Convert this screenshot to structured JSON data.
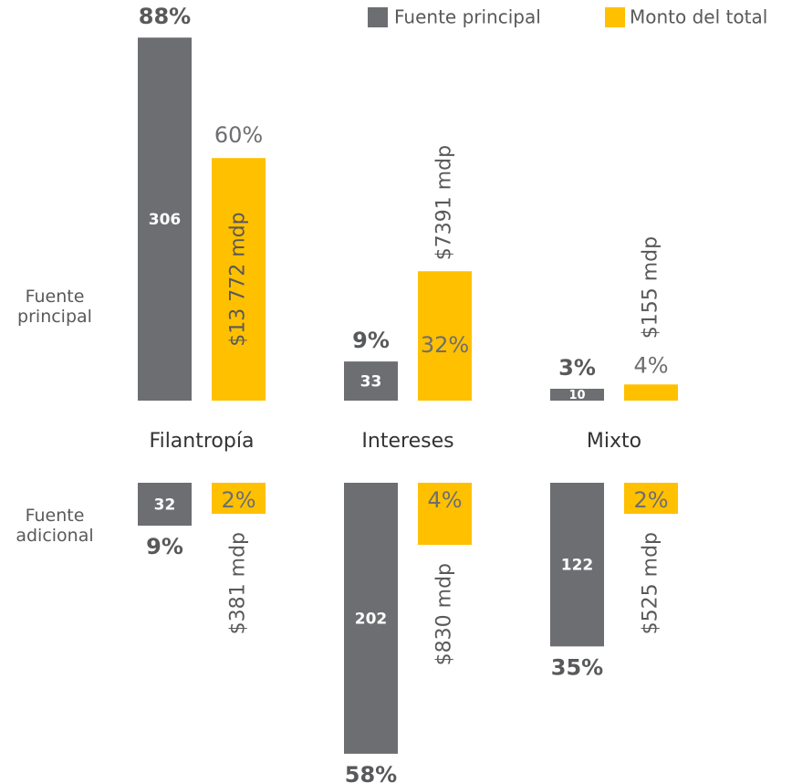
{
  "chart_data": {
    "type": "bar",
    "categories": [
      "Filantropía",
      "Intereses",
      "Mixto"
    ],
    "series": [
      {
        "name": "Fuente principal",
        "color": "#6d6e71"
      },
      {
        "name": "Monto del total",
        "color": "#ffc000"
      }
    ],
    "panels": [
      {
        "label": "Fuente principal",
        "direction": "up",
        "counts": [
          306,
          33,
          10
        ],
        "shares": [
          88,
          9,
          3
        ],
        "share_labels": [
          "88%",
          "9%",
          "3%"
        ],
        "amount_shares": [
          60,
          32,
          4
        ],
        "amount_share_labels": [
          "60%",
          "32%",
          "4%"
        ],
        "amounts": [
          13772,
          7391,
          155
        ],
        "amount_labels": [
          "$13 772 mdp",
          "$7391 mdp",
          "$155 mdp"
        ]
      },
      {
        "label": "Fuente adicional",
        "direction": "down",
        "counts": [
          32,
          202,
          122
        ],
        "shares": [
          9,
          58,
          35
        ],
        "share_labels": [
          "9%",
          "58%",
          "35%"
        ],
        "amount_shares": [
          2,
          4,
          2
        ],
        "amount_share_labels": [
          "2%",
          "4%",
          "2%"
        ],
        "amounts": [
          381,
          830,
          525
        ],
        "amount_labels": [
          "$381 mdp",
          "$830 mdp",
          "$525 mdp"
        ]
      }
    ]
  }
}
